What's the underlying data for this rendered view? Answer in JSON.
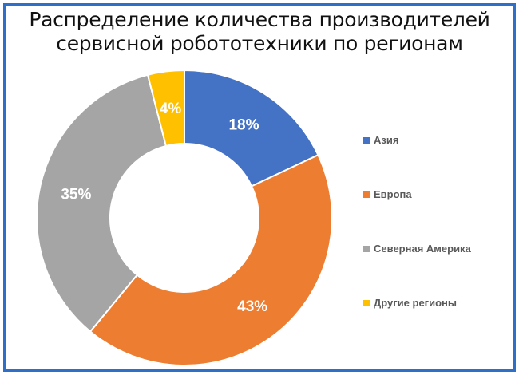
{
  "title": {
    "line1": "Распределение количества производителей",
    "line2": "сервисной робототехники по регионам"
  },
  "chart_data": {
    "type": "pie",
    "style": "doughnut",
    "title": "Распределение количества производителей сервисной робототехники по регионам",
    "categories": [
      "Азия",
      "Европа",
      "Северная Америка",
      "Другие регионы"
    ],
    "values": [
      18,
      43,
      35,
      4
    ],
    "labels": [
      "18%",
      "43%",
      "35%",
      "4%"
    ],
    "colors": [
      "#4472c4",
      "#ed7d31",
      "#a5a5a5",
      "#ffc000"
    ],
    "legend_position": "right"
  }
}
